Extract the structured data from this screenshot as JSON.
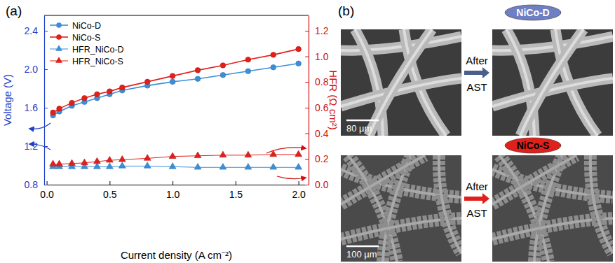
{
  "chart_data": {
    "type": "line",
    "title": "(a)",
    "x_label": "Current density (A cm⁻²)",
    "y_label": "Voltage (V)",
    "y2_label": "HFR (Ω cm²)",
    "x": [
      0.05,
      0.1,
      0.2,
      0.3,
      0.4,
      0.5,
      0.6,
      0.8,
      1.0,
      1.2,
      1.4,
      1.6,
      1.8,
      2.0
    ],
    "xlim": [
      -0.02,
      2.08
    ],
    "xticks": [
      {
        "value": 0,
        "label": "0.0"
      },
      0.5,
      {
        "value": 1,
        "label": "1.0"
      },
      1.5,
      {
        "value": 2,
        "label": "2.0"
      }
    ],
    "ylim": [
      0.8,
      2.56
    ],
    "yticks": [
      0.8,
      1.2,
      1.6,
      {
        "value": 2,
        "label": "2.0"
      },
      2.4
    ],
    "y2lim": [
      0,
      1.32
    ],
    "y2ticks": [
      {
        "value": 0,
        "label": "0.0"
      },
      0.2,
      0.4,
      0.6,
      0.8,
      {
        "value": 1,
        "label": "1.0"
      },
      1.2
    ],
    "legend": "top-left",
    "grid": false,
    "series": [
      {
        "name": "NiCo-D",
        "color": "#3b8fd9",
        "marker": "circle",
        "values": [
          1.52,
          1.56,
          1.62,
          1.66,
          1.7,
          1.74,
          1.78,
          1.83,
          1.87,
          1.9,
          1.94,
          1.98,
          2.02,
          2.06
        ]
      },
      {
        "name": "NiCo-S",
        "color": "#e0201b",
        "marker": "circle",
        "values": [
          1.55,
          1.59,
          1.65,
          1.7,
          1.74,
          1.77,
          1.81,
          1.87,
          1.93,
          1.99,
          2.04,
          2.1,
          2.15,
          2.21
        ]
      },
      {
        "name": "HFR_NiCo-D",
        "color": "#3b8fd9",
        "marker": "triangle",
        "axis": "y2",
        "values": [
          0.14,
          0.14,
          0.14,
          0.14,
          0.14,
          0.14,
          0.145,
          0.145,
          0.14,
          0.135,
          0.135,
          0.135,
          0.135,
          0.135
        ]
      },
      {
        "name": "HFR_NiCo-S",
        "color": "#e0201b",
        "marker": "triangle",
        "axis": "y2",
        "values": [
          0.16,
          0.16,
          0.165,
          0.17,
          0.18,
          0.19,
          0.195,
          0.205,
          0.22,
          0.225,
          0.23,
          0.23,
          0.235,
          0.235
        ]
      }
    ]
  },
  "panel_b": {
    "label": "(b)",
    "samples": [
      {
        "name": "NiCo-D",
        "arrow_text": [
          "After",
          "AST"
        ],
        "scale_bar": "80 µm"
      },
      {
        "name": "NiCo-S",
        "arrow_text": [
          "After",
          "AST"
        ],
        "scale_bar": "100 µm"
      }
    ]
  }
}
